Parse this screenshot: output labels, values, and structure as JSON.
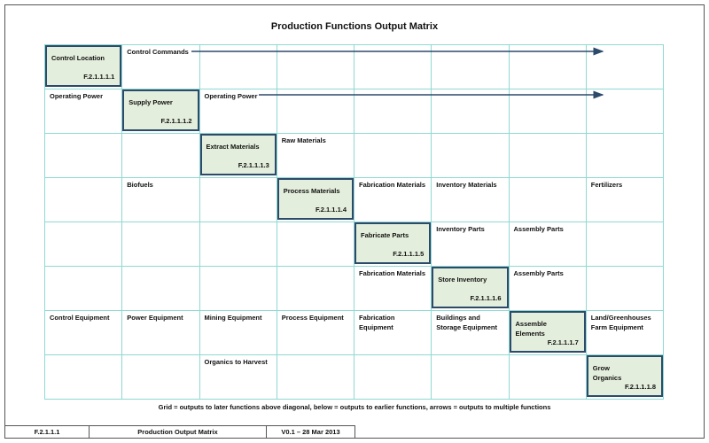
{
  "title": "Production Functions Output Matrix",
  "rows": [
    {
      "function": {
        "name": "Control Location",
        "id": "F.2.1.1.1.1"
      },
      "cells": [
        null,
        "Control Commands",
        null,
        null,
        null,
        null,
        null,
        null
      ]
    },
    {
      "function": {
        "name": "Supply Power",
        "id": "F.2.1.1.1.2"
      },
      "cells": [
        "Operating Power",
        null,
        "Operating Power",
        null,
        null,
        null,
        null,
        null
      ]
    },
    {
      "function": {
        "name": "Extract Materials",
        "id": "F.2.1.1.1.3"
      },
      "cells": [
        null,
        null,
        null,
        "Raw Materials",
        null,
        null,
        null,
        null
      ]
    },
    {
      "function": {
        "name": "Process Materials",
        "id": "F.2.1.1.1.4"
      },
      "cells": [
        null,
        "Biofuels",
        null,
        null,
        "Fabrication Materials",
        "Inventory Materials",
        null,
        "Fertilizers"
      ]
    },
    {
      "function": {
        "name": "Fabricate Parts",
        "id": "F.2.1.1.1.5"
      },
      "cells": [
        null,
        null,
        null,
        null,
        null,
        "Inventory Parts",
        "Assembly Parts",
        null
      ]
    },
    {
      "function": {
        "name": "Store Inventory",
        "id": "F.2.1.1.1.6"
      },
      "cells": [
        null,
        null,
        null,
        null,
        "Fabrication Materials",
        null,
        "Assembly Parts",
        null
      ]
    },
    {
      "function": {
        "name": "Assemble\nElements",
        "id": "F.2.1.1.1.7"
      },
      "cells": [
        "Control Equipment",
        "Power Equipment",
        "Mining Equipment",
        "Process Equipment",
        "Fabrication Equipment",
        "Buildings and\nStorage Equipment",
        null,
        "Land/Greenhouses\nFarm Equipment"
      ]
    },
    {
      "function": {
        "name": "Grow\nOrganics",
        "id": "F.2.1.1.1.8"
      },
      "cells": [
        null,
        null,
        "Organics to Harvest",
        null,
        null,
        null,
        null,
        null
      ]
    }
  ],
  "caption": "Grid = outputs to later functions above diagonal, below = outputs to earlier functions, arrows = outputs to multiple functions",
  "footer": {
    "doc_id": "F.2.1.1.1",
    "doc_title": "Production Output Matrix",
    "version": "V0.1 – 28 Mar 2013"
  }
}
